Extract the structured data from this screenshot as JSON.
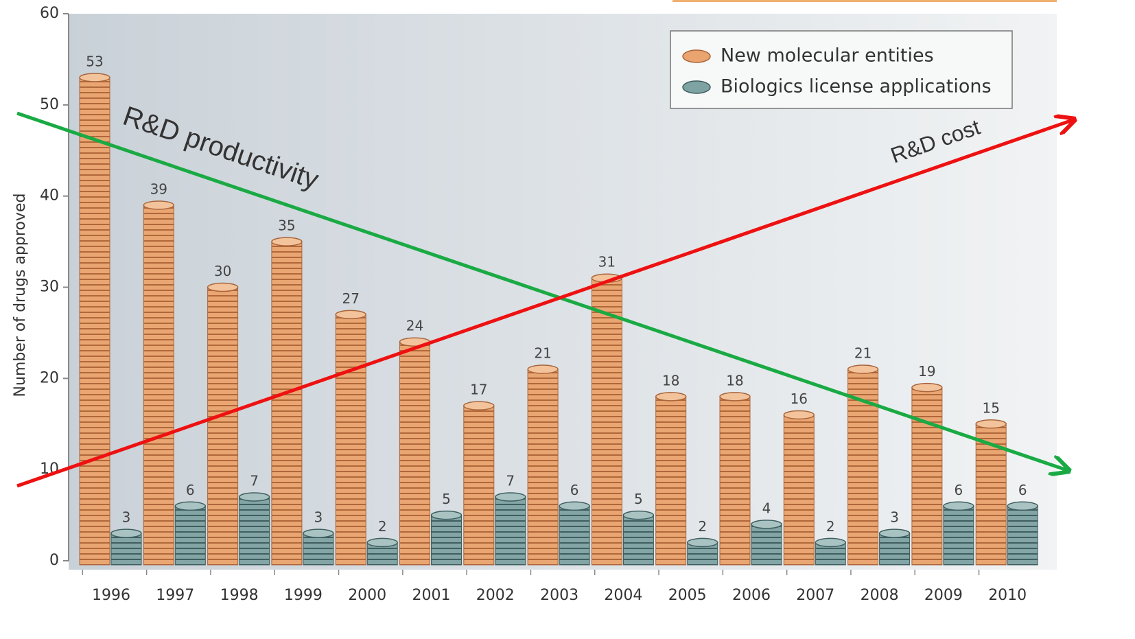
{
  "chart_data": {
    "type": "bar",
    "y_label": "Number of drugs approved",
    "categories": [
      "1996",
      "1997",
      "1998",
      "1999",
      "2000",
      "2001",
      "2002",
      "2003",
      "2004",
      "2005",
      "2006",
      "2007",
      "2008",
      "2009",
      "2010"
    ],
    "series": [
      {
        "name": "New molecular entities",
        "color": "#e9a46f",
        "values": [
          53,
          39,
          30,
          35,
          27,
          24,
          17,
          21,
          31,
          18,
          18,
          16,
          21,
          19,
          15
        ]
      },
      {
        "name": "Biologics license applications",
        "color": "#7fa3a3",
        "values": [
          3,
          6,
          7,
          3,
          2,
          5,
          7,
          6,
          5,
          2,
          4,
          2,
          3,
          6,
          6
        ]
      }
    ],
    "ylim": [
      0,
      60
    ],
    "yticks": [
      0,
      10,
      20,
      30,
      40,
      50,
      60
    ],
    "annotations": [
      {
        "text": "R&D productivity",
        "color": "#1aaa44"
      },
      {
        "text": "R&D cost",
        "color": "#ee1111"
      }
    ]
  }
}
